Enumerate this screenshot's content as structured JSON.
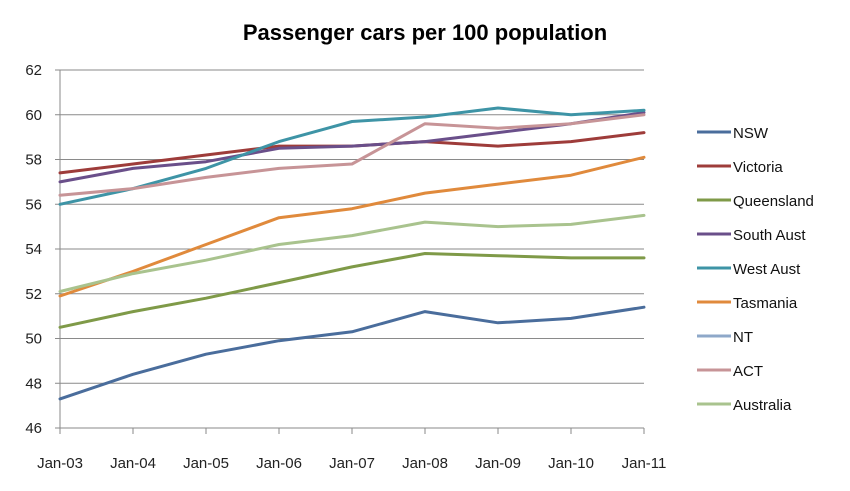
{
  "chart_data": {
    "type": "line",
    "title": "Passenger cars per 100 population",
    "xlabel": "",
    "ylabel": "",
    "ylim": [
      46,
      62
    ],
    "yticks": [
      46,
      48,
      50,
      52,
      54,
      56,
      58,
      60,
      62
    ],
    "grid": true,
    "legend_position": "right",
    "categories": [
      "Jan-03",
      "Jan-04",
      "Jan-05",
      "Jan-06",
      "Jan-07",
      "Jan-08",
      "Jan-09",
      "Jan-10",
      "Jan-11"
    ],
    "series": [
      {
        "name": "NSW",
        "color": "#4a6d9c",
        "values": [
          47.3,
          48.4,
          49.3,
          49.9,
          50.3,
          51.2,
          50.7,
          50.9,
          51.4
        ]
      },
      {
        "name": "Victoria",
        "color": "#9e3c3a",
        "values": [
          57.4,
          57.8,
          58.2,
          58.6,
          58.6,
          58.8,
          58.6,
          58.8,
          59.2
        ]
      },
      {
        "name": "Queensland",
        "color": "#7f9a48",
        "values": [
          50.5,
          51.2,
          51.8,
          52.5,
          53.2,
          53.8,
          53.7,
          53.6,
          53.6
        ]
      },
      {
        "name": "South Aust",
        "color": "#6a4f8a",
        "values": [
          57.0,
          57.6,
          57.9,
          58.5,
          58.6,
          58.8,
          59.2,
          59.6,
          60.1
        ]
      },
      {
        "name": "West Aust",
        "color": "#3e94a6",
        "values": [
          56.0,
          56.7,
          57.6,
          58.8,
          59.7,
          59.9,
          60.3,
          60.0,
          60.2
        ]
      },
      {
        "name": "Tasmania",
        "color": "#e08a3c",
        "values": [
          51.9,
          53.0,
          54.2,
          55.4,
          55.8,
          56.5,
          56.9,
          57.3,
          58.1
        ]
      },
      {
        "name": "NT",
        "color": "#8ea8c9",
        "values": []
      },
      {
        "name": "ACT",
        "color": "#c79497",
        "values": [
          56.4,
          56.7,
          57.2,
          57.6,
          57.8,
          59.6,
          59.4,
          59.6,
          60.0
        ]
      },
      {
        "name": "Australia",
        "color": "#a9c38e",
        "values": [
          52.1,
          52.9,
          53.5,
          54.2,
          54.6,
          55.2,
          55.0,
          55.1,
          55.5
        ]
      }
    ]
  }
}
